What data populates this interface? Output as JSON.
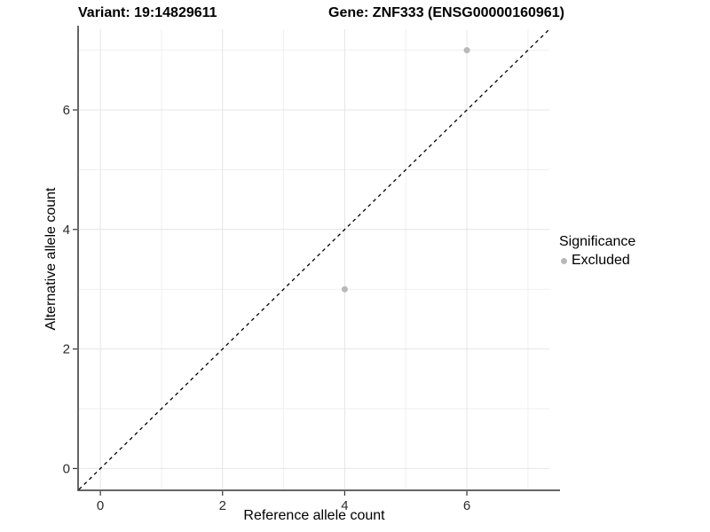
{
  "titles": {
    "variant": "Variant: 19:14829611",
    "gene": "Gene: ZNF333 (ENSG00000160961)"
  },
  "legend": {
    "title": "Significance",
    "entries": [
      {
        "label": "Excluded",
        "color": "#b9b9b9",
        "marker": "circle"
      }
    ]
  },
  "colors": {
    "background": "#ffffff",
    "grid_major": "#e4e4e4",
    "grid_minor": "#efefef",
    "axis_line": "#333333",
    "tick_mark": "#333333",
    "tick_label": "#2b2b2b",
    "title_text": "#000000",
    "reference_line": "#000000",
    "point": "#b9b9b9"
  },
  "chart_data": {
    "type": "scatter",
    "title": "Variant: 19:14829611 | Gene: ZNF333 (ENSG00000160961)",
    "xlabel": "Reference allele count",
    "ylabel": "Alternative allele count",
    "xlim": [
      -0.35,
      7.35
    ],
    "ylim": [
      -0.35,
      7.35
    ],
    "x_ticks": [
      0,
      2,
      4,
      6
    ],
    "x_minor_ticks": [
      1,
      3,
      5,
      7
    ],
    "y_ticks": [
      0,
      2,
      4,
      6
    ],
    "y_minor_ticks": [
      1,
      3,
      5,
      7
    ],
    "grid": "major+minor",
    "legend_position": "right",
    "series": [
      {
        "name": "Excluded",
        "color": "#b9b9b9",
        "points": [
          {
            "x": 4,
            "y": 3
          },
          {
            "x": 6,
            "y": 7
          }
        ]
      }
    ],
    "reference_line": {
      "kind": "identity y=x",
      "style": "dashed",
      "x": [
        -0.35,
        7.35
      ],
      "y": [
        -0.35,
        7.35
      ]
    }
  }
}
